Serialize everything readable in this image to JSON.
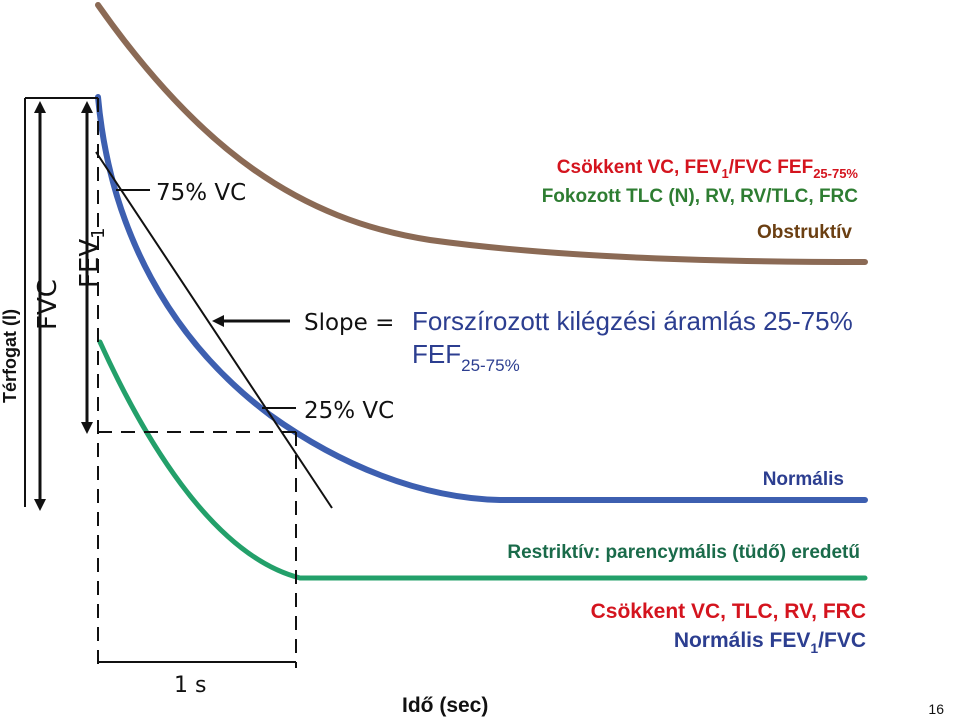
{
  "slide": {
    "page_number": "16",
    "y_axis_label": "Térfogat (l)",
    "x_axis_label": "Idő (sec)"
  },
  "diagram": {
    "fvc_label": "FVC",
    "fev1_label_main": "FEV",
    "fev1_label_sub": "1",
    "vc75_label": "75% VC",
    "vc25_label": "25% VC",
    "slope_label": "Slope =",
    "one_second_label": "1 s",
    "fef_title": "Forszírozott kilégzési áramlás 25-75%",
    "fef_main": "FEF",
    "fef_sub": "25-75%"
  },
  "obstructive": {
    "line1_a": "Csökkent VC, FEV",
    "line1_sub1": "1",
    "line1_b": "/FVC FEF",
    "line1_sub2": "25-75%",
    "line2": "Fokozott TLC (N), RV, RV/TLC, FRC",
    "title": "Obstruktív",
    "curve_color": "#8B6a55"
  },
  "normal": {
    "title": "Normális",
    "curve_color": "#3d5fb0"
  },
  "restrictive": {
    "title": "Restriktív: parencymális (tüdő) eredetű",
    "line1": "Csökkent VC, TLC, RV, FRC",
    "line2_a": "Normális FEV",
    "line2_sub": "1",
    "line2_b": "/FVC",
    "curve_color": "#23a06a"
  },
  "colors": {
    "red": "#d4141e",
    "green": "#2e7d32",
    "brown": "#6b3f12",
    "blue": "#2c3e90",
    "restrictive_text": "#1a6b4a"
  }
}
